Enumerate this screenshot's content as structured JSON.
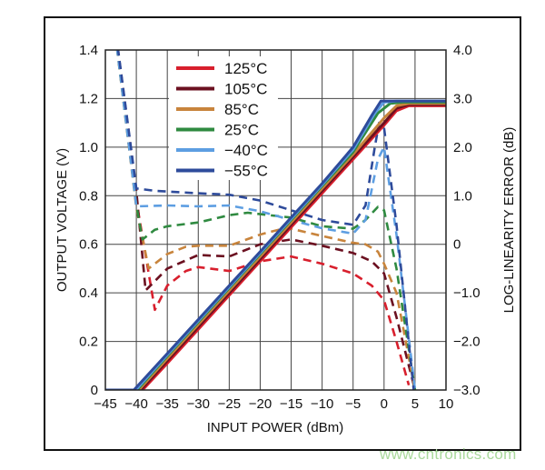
{
  "chart_data": {
    "type": "line",
    "xlabel": "INPUT POWER (dBm)",
    "ylabel": "OUTPUT VOLTAGE (V)",
    "y2label": "LOG-LINEARITY ERROR (dB)",
    "xlim": [
      -45,
      10
    ],
    "ylim": [
      0,
      1.4
    ],
    "y2lim": [
      -3.0,
      4.0
    ],
    "xticks": [
      "-45",
      "-40",
      "-35",
      "-30",
      "-25",
      "-20",
      "-15",
      "-10",
      "-5",
      "0",
      "5",
      "10"
    ],
    "xtick_labels": [
      "−45",
      "−40",
      "−35",
      "−30",
      "−25",
      "−20",
      "−15",
      "−10",
      "−5",
      "0",
      "5",
      "10"
    ],
    "yticks": [
      "0",
      "0.2",
      "0.4",
      "0.6",
      "0.8",
      "1.0",
      "1.2",
      "1.4"
    ],
    "y2ticks": [
      "−3.0",
      "−2.0",
      "−1.0",
      "0",
      "1.0",
      "2.0",
      "3.0",
      "4.0"
    ],
    "grid": true,
    "legend_position": "top-left",
    "series": [
      {
        "name": "125°C",
        "color": "#d81f2d",
        "voltage": [
          [
            -45,
            0
          ],
          [
            -39,
            0
          ],
          [
            -35,
            0.11
          ],
          [
            -30,
            0.25
          ],
          [
            -25,
            0.39
          ],
          [
            -20,
            0.53
          ],
          [
            -15,
            0.67
          ],
          [
            -10,
            0.81
          ],
          [
            -5,
            0.95
          ],
          [
            0,
            1.09
          ],
          [
            2,
            1.15
          ],
          [
            4,
            1.17
          ],
          [
            10,
            1.17
          ]
        ],
        "error_db": [
          [
            -45,
            6
          ],
          [
            -40,
            0.9
          ],
          [
            -37,
            -1.35
          ],
          [
            -35,
            -0.85
          ],
          [
            -32,
            -0.55
          ],
          [
            -30,
            -0.47
          ],
          [
            -25,
            -0.55
          ],
          [
            -20,
            -0.35
          ],
          [
            -15,
            -0.25
          ],
          [
            -10,
            -0.4
          ],
          [
            -5,
            -0.6
          ],
          [
            -2,
            -0.85
          ],
          [
            0,
            -1.15
          ],
          [
            2,
            -2.0
          ],
          [
            4,
            -2.9
          ]
        ]
      },
      {
        "name": "105°C",
        "color": "#6b1020",
        "voltage": [
          [
            -45,
            0
          ],
          [
            -39.3,
            0
          ],
          [
            -35,
            0.12
          ],
          [
            -30,
            0.26
          ],
          [
            -25,
            0.4
          ],
          [
            -20,
            0.54
          ],
          [
            -15,
            0.68
          ],
          [
            -10,
            0.82
          ],
          [
            -5,
            0.96
          ],
          [
            0,
            1.1
          ],
          [
            2,
            1.16
          ],
          [
            4,
            1.175
          ],
          [
            10,
            1.175
          ]
        ],
        "error_db": [
          [
            -45,
            6
          ],
          [
            -40,
            1.1
          ],
          [
            -38.5,
            -0.95
          ],
          [
            -35,
            -0.5
          ],
          [
            -30,
            -0.22
          ],
          [
            -25,
            -0.25
          ],
          [
            -20,
            0
          ],
          [
            -15,
            0.1
          ],
          [
            -10,
            -0.03
          ],
          [
            -5,
            -0.18
          ],
          [
            -2,
            -0.35
          ],
          [
            0,
            -0.6
          ],
          [
            2,
            -1.5
          ],
          [
            4,
            -2.5
          ],
          [
            5,
            -3
          ]
        ]
      },
      {
        "name": "85°C",
        "color": "#c8843c",
        "voltage": [
          [
            -45,
            0
          ],
          [
            -39.6,
            0
          ],
          [
            -35,
            0.13
          ],
          [
            -30,
            0.27
          ],
          [
            -25,
            0.41
          ],
          [
            -20,
            0.55
          ],
          [
            -15,
            0.69
          ],
          [
            -10,
            0.83
          ],
          [
            -5,
            0.97
          ],
          [
            0,
            1.12
          ],
          [
            2,
            1.17
          ],
          [
            4,
            1.18
          ],
          [
            10,
            1.18
          ]
        ],
        "error_db": [
          [
            -45,
            6
          ],
          [
            -40,
            0.75
          ],
          [
            -38,
            -0.5
          ],
          [
            -35,
            -0.2
          ],
          [
            -32,
            -0.05
          ],
          [
            -30,
            -0.03
          ],
          [
            -25,
            -0.03
          ],
          [
            -20,
            0.2
          ],
          [
            -17,
            0.3
          ],
          [
            -15,
            0.32
          ],
          [
            -10,
            0.17
          ],
          [
            -5,
            0.03
          ],
          [
            -3,
            0
          ],
          [
            -1,
            -0.15
          ],
          [
            0,
            -0.4
          ],
          [
            2,
            -1.0
          ],
          [
            5,
            -3
          ]
        ]
      },
      {
        "name": "25°C",
        "color": "#2f8a40",
        "voltage": [
          [
            -45,
            0
          ],
          [
            -39.9,
            0
          ],
          [
            -35,
            0.14
          ],
          [
            -30,
            0.28
          ],
          [
            -25,
            0.42
          ],
          [
            -20,
            0.56
          ],
          [
            -15,
            0.7
          ],
          [
            -10,
            0.84
          ],
          [
            -5,
            0.98
          ],
          [
            -1,
            1.14
          ],
          [
            1,
            1.18
          ],
          [
            3,
            1.185
          ],
          [
            10,
            1.185
          ]
        ],
        "error_db": [
          [
            -45,
            6
          ],
          [
            -40,
            0.8
          ],
          [
            -39,
            0.1
          ],
          [
            -37,
            0.3
          ],
          [
            -35,
            0.37
          ],
          [
            -30,
            0.45
          ],
          [
            -25,
            0.6
          ],
          [
            -22,
            0.65
          ],
          [
            -20,
            0.62
          ],
          [
            -15,
            0.55
          ],
          [
            -10,
            0.37
          ],
          [
            -5,
            0.32
          ],
          [
            -3,
            0.5
          ],
          [
            -1,
            0.77
          ],
          [
            0,
            0.7
          ],
          [
            2,
            -0.5
          ],
          [
            5,
            -3
          ]
        ]
      },
      {
        "name": "−40°C",
        "color": "#5d9ee2",
        "voltage": [
          [
            -45,
            0
          ],
          [
            -40.1,
            0
          ],
          [
            -35,
            0.145
          ],
          [
            -30,
            0.285
          ],
          [
            -25,
            0.425
          ],
          [
            -20,
            0.565
          ],
          [
            -15,
            0.705
          ],
          [
            -10,
            0.845
          ],
          [
            -5,
            0.99
          ],
          [
            -1.5,
            1.14
          ],
          [
            0,
            1.185
          ],
          [
            2,
            1.19
          ],
          [
            10,
            1.19
          ]
        ],
        "error_db": [
          [
            -45,
            6
          ],
          [
            -40,
            0.78
          ],
          [
            -35,
            0.8
          ],
          [
            -30,
            0.78
          ],
          [
            -25,
            0.8
          ],
          [
            -20,
            0.68
          ],
          [
            -15,
            0.5
          ],
          [
            -10,
            0.33
          ],
          [
            -5,
            0.22
          ],
          [
            -3,
            0.5
          ],
          [
            -1,
            1.75
          ],
          [
            0,
            2.0
          ],
          [
            2,
            0.2
          ],
          [
            5,
            -3
          ]
        ]
      },
      {
        "name": "−55°C",
        "color": "#2e4b9b",
        "voltage": [
          [
            -45,
            0
          ],
          [
            -40.4,
            0
          ],
          [
            -35,
            0.15
          ],
          [
            -30,
            0.29
          ],
          [
            -25,
            0.43
          ],
          [
            -20,
            0.57
          ],
          [
            -15,
            0.71
          ],
          [
            -10,
            0.85
          ],
          [
            -5,
            1.0
          ],
          [
            -2,
            1.13
          ],
          [
            -0.5,
            1.19
          ],
          [
            10,
            1.19
          ]
        ],
        "error_db": [
          [
            -45,
            6
          ],
          [
            -40,
            1.15
          ],
          [
            -37,
            1.1
          ],
          [
            -30,
            1.05
          ],
          [
            -25,
            1.02
          ],
          [
            -20,
            0.9
          ],
          [
            -15,
            0.7
          ],
          [
            -10,
            0.5
          ],
          [
            -5,
            0.4
          ],
          [
            -3,
            0.8
          ],
          [
            -1.5,
            2.0
          ],
          [
            -0.8,
            2.5
          ],
          [
            0,
            2.4
          ],
          [
            2,
            0.4
          ],
          [
            4.8,
            -3
          ]
        ]
      }
    ]
  },
  "watermark": "www.cntronics.com"
}
